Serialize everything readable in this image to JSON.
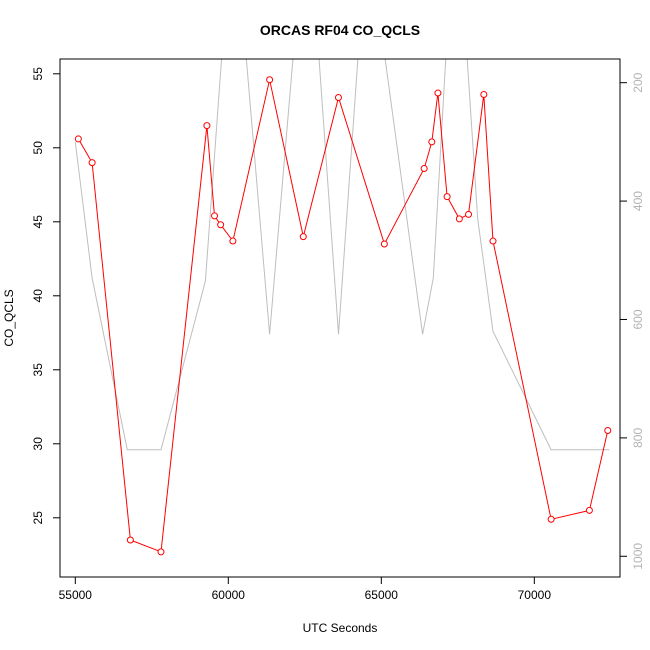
{
  "chart_data": {
    "type": "line",
    "title": "ORCAS RF04 CO_QCLS",
    "xlabel": "UTC Seconds",
    "ylabel": "CO_QCLS",
    "xlim": [
      54500,
      72800
    ],
    "ylim": [
      21.0,
      56.0
    ],
    "x_ticks": [
      55000,
      60000,
      65000,
      70000
    ],
    "y_ticks": [
      25,
      30,
      35,
      40,
      45,
      50,
      55
    ],
    "y2lim": [
      1035,
      160
    ],
    "y2_ticks": [
      200,
      400,
      600,
      800,
      1000
    ],
    "series": [
      {
        "role": "CO_QCLS",
        "color": "#ff0000",
        "marker": "open-circle",
        "x": [
          55100,
          55550,
          56800,
          57800,
          59300,
          59550,
          59750,
          60150,
          61350,
          62450,
          63600,
          65100,
          66400,
          66650,
          66850,
          67150,
          67550,
          67850,
          68350,
          68650,
          70550,
          71800,
          72400
        ],
        "y": [
          50.6,
          49.0,
          23.5,
          22.7,
          51.5,
          45.4,
          44.8,
          43.7,
          54.6,
          44.0,
          53.4,
          43.5,
          48.6,
          50.4,
          53.7,
          46.7,
          45.2,
          45.5,
          53.6,
          43.7,
          24.9,
          25.5,
          30.9
        ]
      },
      {
        "role": "secondary-axis",
        "color": "#bebebe",
        "marker": "none",
        "x": [
          55000,
          55550,
          56700,
          57800,
          59250,
          59900,
          60450,
          61350,
          62250,
          62850,
          63600,
          64350,
          64900,
          66350,
          66700,
          67200,
          67700,
          68150,
          68650,
          70550,
          71800,
          72450
        ],
        "y": [
          300,
          530,
          820,
          820,
          535,
          75,
          75,
          625,
          75,
          75,
          625,
          75,
          75,
          625,
          530,
          75,
          75,
          430,
          620,
          820,
          820,
          820
        ]
      }
    ]
  }
}
